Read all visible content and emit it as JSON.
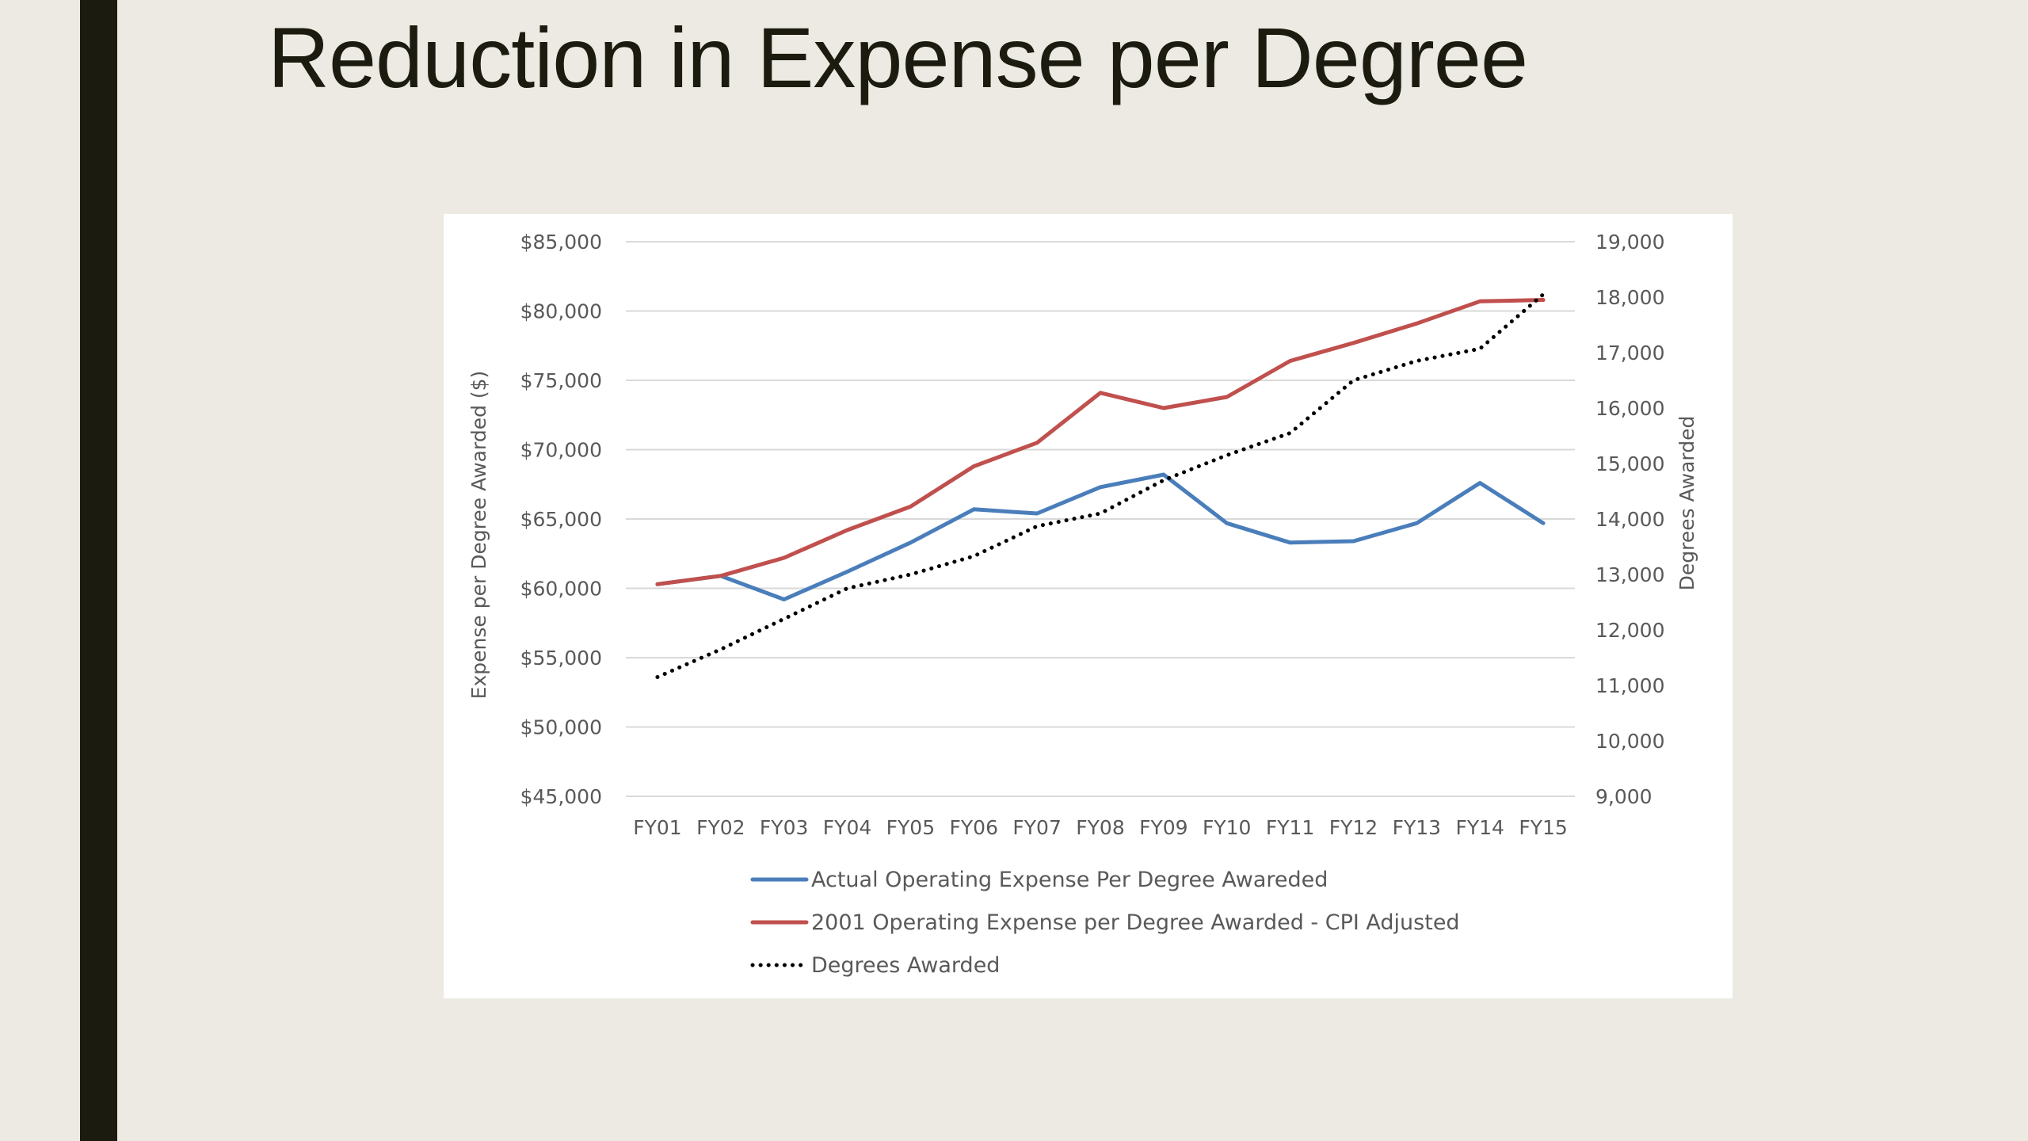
{
  "slide": {
    "title": "Reduction in Expense per Degree"
  },
  "colors": {
    "background": "#eceae2",
    "accent_bar": "#1b1b0f",
    "series_actual": "#4a7ebb",
    "series_cpi": "#c0504d",
    "series_degrees": "#000000"
  },
  "chart_data": {
    "type": "line",
    "title": "",
    "categories": [
      "FY01",
      "FY02",
      "FY03",
      "FY04",
      "FY05",
      "FY06",
      "FY07",
      "FY08",
      "FY09",
      "FY10",
      "FY11",
      "FY12",
      "FY13",
      "FY14",
      "FY15"
    ],
    "y_left": {
      "label": "Expense per Degree Awarded ($)",
      "range": [
        45000,
        85000
      ],
      "ticks": [
        "$45,000",
        "$50,000",
        "$55,000",
        "$60,000",
        "$65,000",
        "$70,000",
        "$75,000",
        "$80,000",
        "$85,000"
      ]
    },
    "y_right": {
      "label": "Degrees Awarded",
      "range": [
        9000,
        19000
      ],
      "ticks": [
        "9,000",
        "10,000",
        "11,000",
        "12,000",
        "13,000",
        "14,000",
        "15,000",
        "16,000",
        "17,000",
        "18,000",
        "19,000"
      ]
    },
    "grid": true,
    "legend_position": "bottom",
    "series": [
      {
        "name": "Actual Operating Expense Per Degree Awareded",
        "axis": "left",
        "style": "solid",
        "values": [
          60300,
          60900,
          59200,
          61200,
          63300,
          65700,
          65400,
          67300,
          68200,
          64700,
          63300,
          63400,
          64700,
          67600,
          64700
        ]
      },
      {
        "name": "2001 Operating Expense per Degree Awarded - CPI Adjusted",
        "axis": "left",
        "style": "solid",
        "values": [
          60300,
          60900,
          62200,
          64200,
          65900,
          68800,
          70500,
          74100,
          73000,
          73800,
          76400,
          77700,
          79100,
          80700,
          80800
        ]
      },
      {
        "name": "Degrees Awarded",
        "axis": "right",
        "style": "dotted",
        "values": [
          11150,
          11650,
          12200,
          12750,
          13000,
          13330,
          13870,
          14100,
          14700,
          15150,
          15550,
          16500,
          16850,
          17070,
          18050
        ]
      }
    ]
  }
}
